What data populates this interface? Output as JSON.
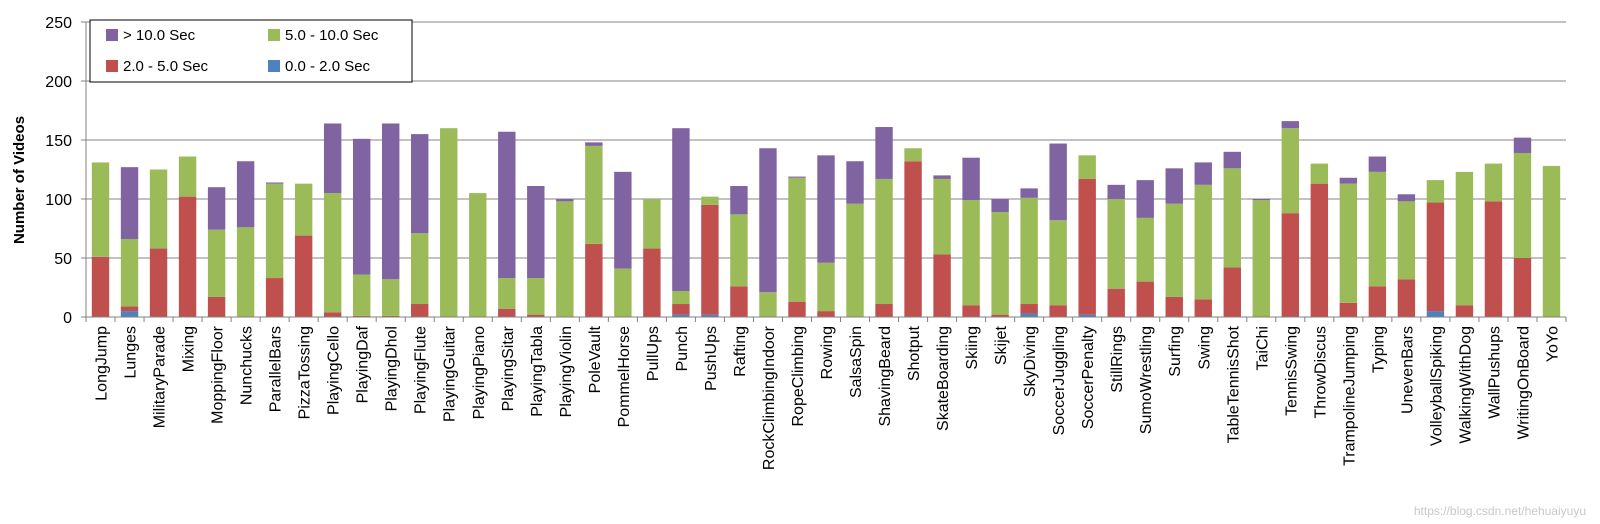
{
  "chart_data": {
    "type": "bar",
    "stacked": true,
    "ylabel": "Number of Videos",
    "xlabel": "",
    "title": "",
    "ylim": [
      0,
      250
    ],
    "yticks": [
      0,
      50,
      100,
      150,
      200,
      250
    ],
    "grid": true,
    "legend_position": "top-left",
    "categories": [
      "LongJump",
      "Lunges",
      "MilitaryParade",
      "Mixing",
      "MoppingFloor",
      "Nunchucks",
      "ParallelBars",
      "PizzaTossing",
      "PlayingCello",
      "PlayingDaf",
      "PlayingDhol",
      "PlayingFlute",
      "PlayingGuitar",
      "PlayingPiano",
      "PlayingSitar",
      "PlayingTabla",
      "PlayingViolin",
      "PoleVault",
      "PommelHorse",
      "PullUps",
      "Punch",
      "PushUps",
      "Rafting",
      "RockClimbingIndoor",
      "RopeClimbing",
      "Rowing",
      "SalsaSpin",
      "ShavingBeard",
      "Shotput",
      "SkateBoarding",
      "Skiing",
      "Skijet",
      "SkyDiving",
      "SoccerJuggling",
      "SoccerPenalty",
      "StillRings",
      "SumoWrestling",
      "Surfing",
      "Swing",
      "TableTennisShot",
      "TaiChi",
      "TennisSwing",
      "ThrowDiscus",
      "TrampolineJumping",
      "Typing",
      "UnevenBars",
      "VolleyballSpiking",
      "WalkingWithDog",
      "WallPushups",
      "WritingOnBoard",
      "YoYo"
    ],
    "series": [
      {
        "name": "0.0 - 2.0 Sec",
        "color": "#4f81bd",
        "values": [
          0,
          5,
          0,
          0,
          0,
          0,
          0,
          0,
          0,
          0,
          0,
          0,
          0,
          0,
          0,
          0,
          0,
          0,
          0,
          0,
          2,
          2,
          0,
          0,
          0,
          0,
          0,
          0,
          0,
          0,
          0,
          0,
          3,
          0,
          2,
          0,
          0,
          0,
          0,
          0,
          0,
          0,
          0,
          0,
          0,
          0,
          5,
          0,
          0,
          0,
          0
        ]
      },
      {
        "name": "2.0 - 5.0 Sec",
        "color": "#c0504d",
        "values": [
          51,
          4,
          58,
          102,
          17,
          0,
          33,
          69,
          4,
          1,
          1,
          11,
          0,
          0,
          7,
          2,
          0,
          62,
          0,
          58,
          9,
          93,
          26,
          0,
          13,
          5,
          0,
          11,
          132,
          53,
          10,
          2,
          8,
          10,
          115,
          24,
          30,
          17,
          15,
          42,
          0,
          88,
          113,
          12,
          26,
          32,
          92,
          10,
          98,
          50,
          0
        ]
      },
      {
        "name": "5.0 - 10.0 Sec",
        "color": "#9bbb59",
        "values": [
          80,
          57,
          67,
          34,
          57,
          76,
          80,
          44,
          101,
          35,
          31,
          60,
          160,
          105,
          26,
          31,
          98,
          83,
          41,
          42,
          11,
          7,
          61,
          21,
          105,
          41,
          96,
          106,
          11,
          64,
          89,
          87,
          90,
          72,
          20,
          76,
          54,
          79,
          97,
          84,
          99,
          72,
          17,
          101,
          97,
          66,
          19,
          113,
          32,
          89,
          128
        ]
      },
      {
        "name": "> 10.0 Sec",
        "color": "#8064a2",
        "values": [
          0,
          61,
          0,
          0,
          36,
          56,
          1,
          0,
          59,
          115,
          132,
          84,
          0,
          0,
          124,
          78,
          2,
          3,
          82,
          0,
          138,
          0,
          24,
          122,
          1,
          91,
          36,
          44,
          0,
          3,
          36,
          11,
          8,
          65,
          0,
          12,
          32,
          30,
          19,
          14,
          1,
          6,
          0,
          5,
          13,
          6,
          0,
          0,
          0,
          13,
          0
        ]
      }
    ]
  },
  "legend": {
    "items": [
      {
        "label": "> 10.0 Sec",
        "color": "#8064a2"
      },
      {
        "label": "5.0 - 10.0 Sec",
        "color": "#9bbb59"
      },
      {
        "label": "2.0 - 5.0 Sec",
        "color": "#c0504d"
      },
      {
        "label": "0.0 - 2.0 Sec",
        "color": "#4f81bd"
      }
    ]
  },
  "watermark": "https://blog.csdn.net/hehuaiyuyu"
}
